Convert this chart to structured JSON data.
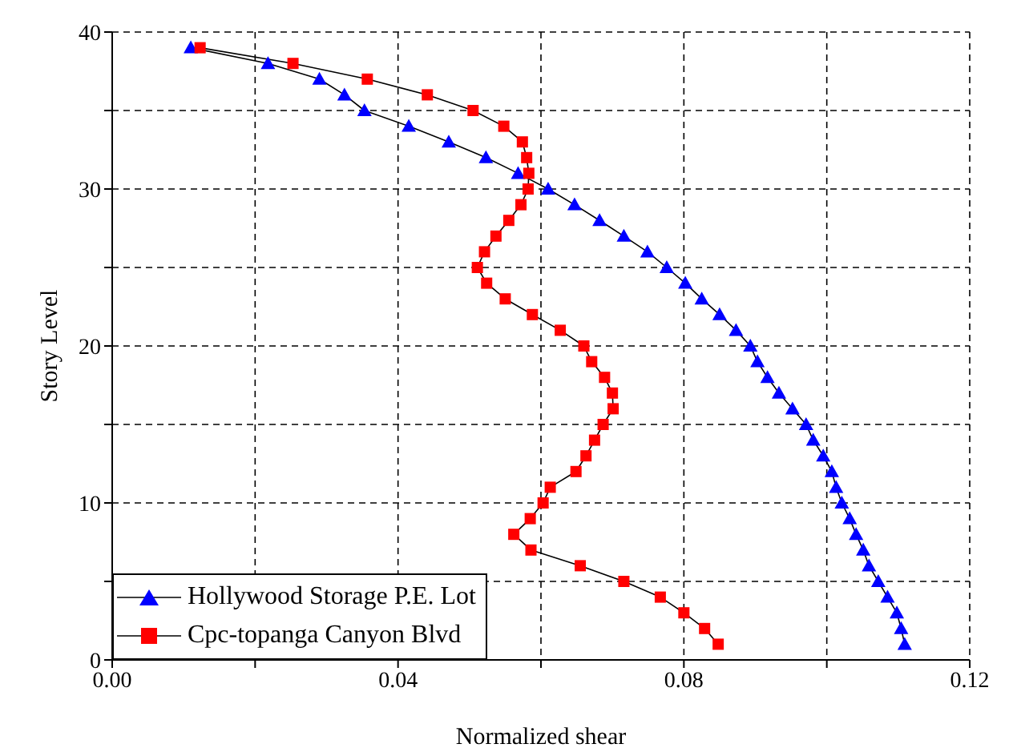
{
  "chart_data": {
    "type": "line",
    "xlabel": "Normalized shear",
    "ylabel": "Story Level",
    "xlim": [
      0,
      0.12
    ],
    "xticks": [
      {
        "value": 0,
        "label": "0.00"
      },
      {
        "value": 0.02,
        "label": null
      },
      {
        "value": 0.04,
        "label": "0.04"
      },
      {
        "value": 0.06,
        "label": null
      },
      {
        "value": 0.08,
        "label": "0.08"
      },
      {
        "value": 0.1,
        "label": null
      },
      {
        "value": 0.12,
        "label": "0.12"
      }
    ],
    "ylim": [
      0,
      40
    ],
    "yticks": [
      0,
      {
        "value": 5,
        "label": null
      },
      10,
      {
        "value": 15,
        "label": null
      },
      20,
      {
        "value": 25,
        "label": null
      },
      30,
      {
        "value": 35,
        "label": null
      },
      40
    ],
    "grid": true,
    "legend": "bottom left",
    "line_style": "solid",
    "series": [
      {
        "name": "Hollywood Storage P.E. Lot",
        "color": "#0000ff",
        "marker": "triangle",
        "x": [
          0.011,
          0.0218,
          0.029,
          0.0325,
          0.0353,
          0.0415,
          0.0471,
          0.0523,
          0.0568,
          0.061,
          0.0647,
          0.0682,
          0.0716,
          0.0749,
          0.0776,
          0.0802,
          0.0825,
          0.085,
          0.0873,
          0.0893,
          0.0903,
          0.0917,
          0.0933,
          0.0952,
          0.0971,
          0.0981,
          0.0995,
          0.1007,
          0.1013,
          0.1021,
          0.1032,
          0.1041,
          0.1051,
          0.1059,
          0.1072,
          0.1085,
          0.1098,
          0.1104,
          0.1109
        ],
        "values": [
          39,
          38,
          37,
          36,
          35,
          34,
          33,
          32,
          31,
          30,
          29,
          28,
          27,
          26,
          25,
          24,
          23,
          22,
          21,
          20,
          19,
          18,
          17,
          16,
          15,
          14,
          13,
          12,
          11,
          10,
          9,
          8,
          7,
          6,
          5,
          4,
          3,
          2,
          1
        ]
      },
      {
        "name": "Cpc-topanga Canyon Blvd",
        "color": "#ff0000",
        "marker": "square",
        "x": [
          0.0123,
          0.0253,
          0.0357,
          0.0441,
          0.0505,
          0.0548,
          0.0574,
          0.058,
          0.0583,
          0.0582,
          0.0572,
          0.0555,
          0.0537,
          0.0521,
          0.0511,
          0.0524,
          0.055,
          0.0588,
          0.0627,
          0.066,
          0.0671,
          0.0689,
          0.07,
          0.0701,
          0.0687,
          0.0675,
          0.0663,
          0.0649,
          0.0613,
          0.0603,
          0.0585,
          0.0562,
          0.0586,
          0.0655,
          0.0716,
          0.0767,
          0.08,
          0.0829,
          0.0848
        ],
        "values": [
          39,
          38,
          37,
          36,
          35,
          34,
          33,
          32,
          31,
          30,
          29,
          28,
          27,
          26,
          25,
          24,
          23,
          22,
          21,
          20,
          19,
          18,
          17,
          16,
          15,
          14,
          13,
          12,
          11,
          10,
          9,
          8,
          7,
          6,
          5,
          4,
          3,
          2,
          1
        ]
      }
    ]
  }
}
